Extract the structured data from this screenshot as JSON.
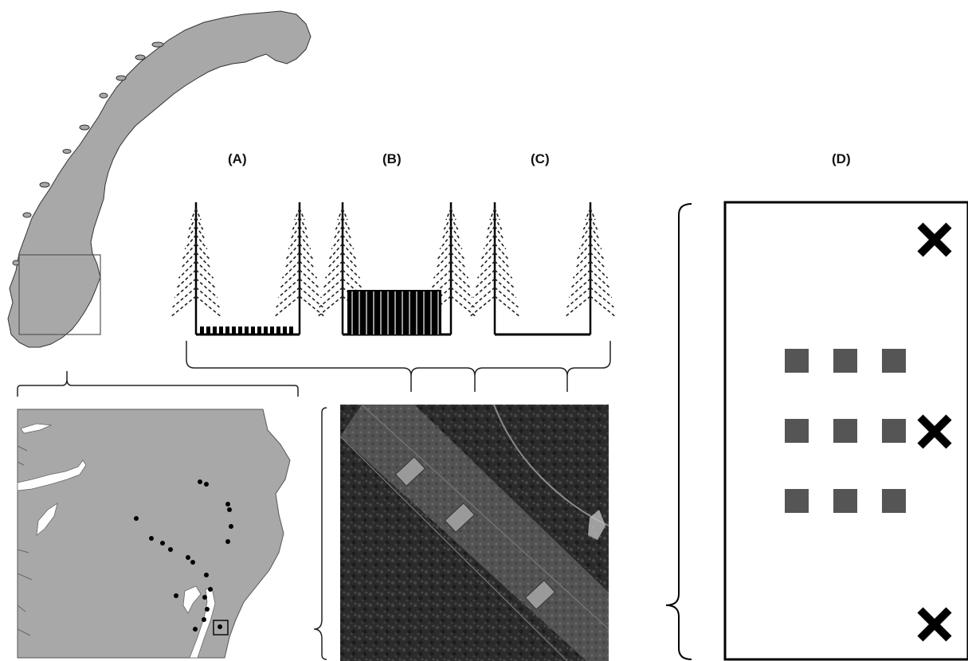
{
  "panel_labels": {
    "a": "(A)",
    "b": "(B)",
    "c": "(C)",
    "d": "(D)"
  },
  "colors": {
    "land": "#a8a8a8",
    "outline": "#333333",
    "water": "#ffffff",
    "aerial_dark": "#2e2e2e",
    "aerial_cut": "#5a5a5a",
    "plot_square": "#555555",
    "ink": "#000000"
  },
  "panel_d": {
    "cross_markers": 3,
    "plot_grid": {
      "rows": 3,
      "cols": 3
    }
  },
  "region_map": {
    "site_count": 20
  },
  "aerial_photo": {
    "plot_count": 3
  }
}
